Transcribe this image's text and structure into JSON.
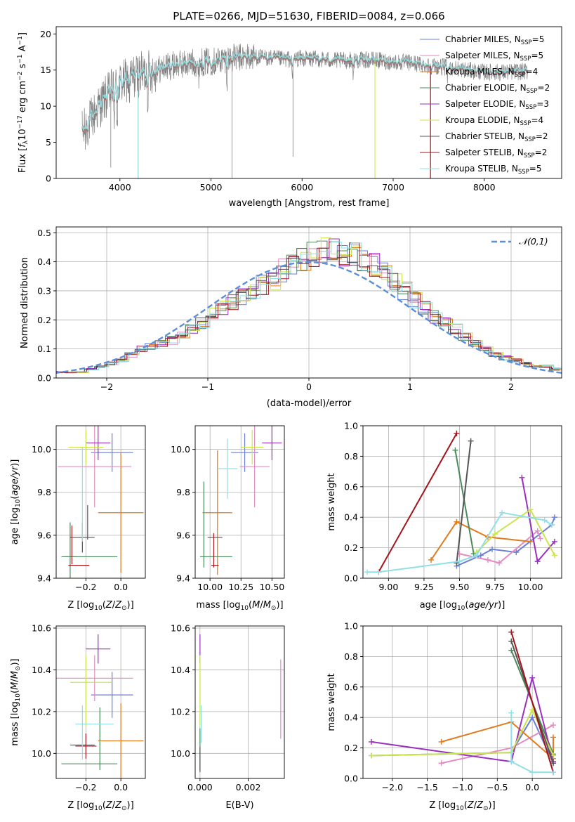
{
  "chart_data": [
    {
      "id": "spectrum",
      "type": "line",
      "title": "PLATE=0266, MJD=51630, FIBERID=0084, z=0.066",
      "xlabel": "wavelength [Angstrom, rest frame]",
      "ylabel": "Flux [f_λ10^-17 erg cm^-2 s^-1 A^-1]",
      "xlim": [
        3300,
        8850
      ],
      "ylim": [
        0,
        21
      ],
      "xticks": [
        4000,
        5000,
        6000,
        7000,
        8000
      ],
      "yticks": [
        0,
        5,
        10,
        15,
        20
      ],
      "grid": false,
      "legend_position": "top-right",
      "continuum": {
        "x": [
          3600,
          3700,
          3800,
          3900,
          4000,
          4100,
          4200,
          4300,
          4400,
          4500,
          4600,
          4800,
          5000,
          5200,
          5400,
          5600,
          5800,
          6000,
          6200,
          6400,
          6600,
          6800,
          7000,
          7200,
          7400,
          7600,
          7800,
          8000,
          8200,
          8400
        ],
        "y": [
          6.5,
          8.5,
          10.5,
          12.0,
          13.0,
          13.8,
          14.3,
          14.7,
          15.0,
          15.4,
          15.7,
          16.0,
          16.2,
          16.6,
          16.8,
          16.7,
          16.5,
          16.6,
          16.5,
          16.3,
          16.4,
          16.4,
          16.1,
          16.0,
          15.6,
          15.4,
          15.0,
          14.7,
          14.7,
          14.8
        ]
      },
      "series": [
        {
          "name": "Chabrier MILES, N_SSP=5",
          "label_main": "Chabrier MILES, N",
          "label_sub": "SSP",
          "label_end": "=5",
          "color": "#6a7fd6"
        },
        {
          "name": "Salpeter MILES, N_SSP=5",
          "label_main": "Salpeter MILES, N",
          "label_sub": "SSP",
          "label_end": "=5",
          "color": "#e38ac0"
        },
        {
          "name": "Kroupa MILES, N_SSP=4",
          "label_main": "Kroupa MILES, N",
          "label_sub": "SSP",
          "label_end": "=4",
          "color": "#e07b1f"
        },
        {
          "name": "Chabrier ELODIE, N_SSP=2",
          "label_main": "Chabrier ELODIE, N",
          "label_sub": "SSP",
          "label_end": "=2",
          "color": "#4b8a5a"
        },
        {
          "name": "Salpeter ELODIE, N_SSP=3",
          "label_main": "Salpeter ELODIE, N",
          "label_sub": "SSP",
          "label_end": "=3",
          "color": "#9a2fc0"
        },
        {
          "name": "Kroupa ELODIE, N_SSP=4",
          "label_main": "Kroupa ELODIE, N",
          "label_sub": "SSP",
          "label_end": "=4",
          "color": "#c8e64a"
        },
        {
          "name": "Chabrier STELIB, N_SSP=2",
          "label_main": "Chabrier STELIB, N",
          "label_sub": "SSP",
          "label_end": "=2",
          "color": "#555555"
        },
        {
          "name": "Salpeter STELIB, N_SSP=2",
          "label_main": "Salpeter STELIB, N",
          "label_sub": "SSP",
          "label_end": "=2",
          "color": "#a3151c"
        },
        {
          "name": "Kroupa STELIB, N_SSP=5",
          "label_main": "Kroupa STELIB, N",
          "label_sub": "SSP",
          "label_end": "=5",
          "color": "#8fe0e6"
        }
      ]
    },
    {
      "id": "residuals",
      "type": "histogram",
      "xlabel": "(data-model)/error",
      "ylabel": "Normed distribution",
      "xlim": [
        -2.5,
        2.5
      ],
      "ylim": [
        0,
        0.52
      ],
      "xticks": [
        -2,
        -1,
        0,
        1,
        2
      ],
      "yticks": [
        0.0,
        0.1,
        0.2,
        0.3,
        0.4,
        0.5
      ],
      "grid": true,
      "legend_position": "top-right",
      "reference_curve": {
        "name": "𝒩(0,1)",
        "mean": 0,
        "sigma": 1,
        "color": "#5b8fd9"
      },
      "bin_width": 0.1,
      "bin_start": -2.5,
      "base_values": [
        0.02,
        0.02,
        0.02,
        0.03,
        0.04,
        0.05,
        0.06,
        0.08,
        0.1,
        0.11,
        0.12,
        0.13,
        0.15,
        0.17,
        0.19,
        0.22,
        0.24,
        0.26,
        0.28,
        0.3,
        0.32,
        0.34,
        0.37,
        0.39,
        0.41,
        0.43,
        0.44,
        0.44,
        0.43,
        0.42,
        0.41,
        0.39,
        0.36,
        0.33,
        0.3,
        0.27,
        0.24,
        0.21,
        0.19,
        0.17,
        0.14,
        0.12,
        0.1,
        0.08,
        0.07,
        0.06,
        0.05,
        0.04,
        0.04,
        0.03
      ]
    },
    {
      "id": "age_vs_Z",
      "type": "errorbar",
      "xlabel": "Z [log10(Z/Z⊙)]",
      "ylabel": "age [log10(age/yr)]",
      "xlim": [
        -0.37,
        0.14
      ],
      "ylim": [
        9.4,
        10.11
      ],
      "xticks": [
        -0.2,
        0.0
      ],
      "yticks": [
        9.4,
        9.6,
        9.8,
        10.0
      ],
      "grid": true,
      "points": [
        {
          "color": "#6a7fd6",
          "x": -0.05,
          "xerr": 0.12,
          "y": 9.985,
          "yerr": 0.09
        },
        {
          "color": "#e38ac0",
          "x": -0.15,
          "xerr": 0.21,
          "y": 9.92,
          "yerr": 0.19
        },
        {
          "color": "#e07b1f",
          "x": 0.0,
          "xerr": 0.13,
          "y": 9.705,
          "yerr": 0.28
        },
        {
          "color": "#4b8a5a",
          "x": -0.29,
          "xerr": 0.03,
          "y": 9.5,
          "yerr": 0.16
        },
        {
          "color": "#4b8a5a",
          "x": -0.18,
          "xerr": 0.16,
          "y": 9.5,
          "yerr": 0.0
        },
        {
          "color": "#9a2fc0",
          "x": -0.13,
          "xerr": 0.07,
          "y": 10.03,
          "yerr": 0.08
        },
        {
          "color": "#c8e64a",
          "x": -0.2,
          "xerr": 0.1,
          "y": 10.01,
          "yerr": 0.08
        },
        {
          "color": "#555555",
          "x": -0.22,
          "xerr": 0.07,
          "y": 9.59,
          "yerr": 0.07
        },
        {
          "color": "#555555",
          "x": -0.19,
          "xerr": 0.0,
          "y": 9.66,
          "yerr": 0.08
        },
        {
          "color": "#a3151c",
          "x": -0.24,
          "xerr": 0.06,
          "y": 9.46,
          "yerr": 0.0
        },
        {
          "color": "#a3151c",
          "x": -0.28,
          "xerr": 0.0,
          "y": 9.555,
          "yerr": 0.09
        },
        {
          "color": "#8fe0e6",
          "x": -0.22,
          "xerr": 0.0,
          "y": 9.79,
          "yerr": 0.22
        }
      ]
    },
    {
      "id": "age_vs_mass",
      "type": "errorbar",
      "xlabel": "mass [log10(M/M⊙)]",
      "ylabel": "",
      "xlim": [
        9.88,
        10.6
      ],
      "ylim": [
        9.4,
        10.11
      ],
      "xticks": [
        10.0,
        10.25,
        10.5
      ],
      "yticks": [
        9.4,
        9.6,
        9.8,
        10.0
      ],
      "grid": true,
      "points": [
        {
          "color": "#6a7fd6",
          "x": 10.28,
          "xerr": 0.11,
          "y": 9.985,
          "yerr": 0.09
        },
        {
          "color": "#e38ac0",
          "x": 10.36,
          "xerr": 0.12,
          "y": 9.92,
          "yerr": 0.19
        },
        {
          "color": "#e07b1f",
          "x": 10.06,
          "xerr": 0.12,
          "y": 9.705,
          "yerr": 0.29
        },
        {
          "color": "#4b8a5a",
          "x": 10.05,
          "xerr": 0.13,
          "y": 9.5,
          "yerr": 0.0
        },
        {
          "color": "#4b8a5a",
          "x": 9.95,
          "xerr": 0.0,
          "y": 9.65,
          "yerr": 0.2
        },
        {
          "color": "#9a2fc0",
          "x": 10.5,
          "xerr": 0.08,
          "y": 10.03,
          "yerr": 0.08
        },
        {
          "color": "#c8e64a",
          "x": 10.34,
          "xerr": 0.09,
          "y": 10.01,
          "yerr": 0.08
        },
        {
          "color": "#555555",
          "x": 10.04,
          "xerr": 0.06,
          "y": 9.59,
          "yerr": 0.0
        },
        {
          "color": "#a3151c",
          "x": 10.04,
          "xerr": 0.03,
          "y": 9.46,
          "yerr": 0.0
        },
        {
          "color": "#a3151c",
          "x": 10.03,
          "xerr": 0.0,
          "y": 9.53,
          "yerr": 0.08
        },
        {
          "color": "#8fe0e6",
          "x": 10.14,
          "xerr": 0.08,
          "y": 9.91,
          "yerr": 0.14
        }
      ]
    },
    {
      "id": "weight_vs_age",
      "type": "line",
      "xlabel": "age [log10(age/yr)]",
      "ylabel": "mass weight",
      "xlim": [
        8.82,
        10.22
      ],
      "ylim": [
        0,
        1.0
      ],
      "xticks": [
        9.0,
        9.25,
        9.5,
        9.75,
        10.0
      ],
      "yticks": [
        0.0,
        0.2,
        0.4,
        0.6,
        0.8,
        1.0
      ],
      "grid": true,
      "series": [
        {
          "color": "#6a7fd6",
          "x": [
            9.48,
            9.65,
            9.73,
            9.9,
            10.15,
            10.17
          ],
          "y": [
            0.08,
            0.15,
            0.19,
            0.17,
            0.35,
            0.4
          ]
        },
        {
          "color": "#e38ac0",
          "x": [
            9.5,
            9.7,
            9.78,
            10.05,
            10.07
          ],
          "y": [
            0.16,
            0.12,
            0.1,
            0.31,
            0.26
          ]
        },
        {
          "color": "#e07b1f",
          "x": [
            9.3,
            9.48,
            9.7,
            10.0
          ],
          "y": [
            0.12,
            0.37,
            0.27,
            0.24
          ]
        },
        {
          "color": "#4b8a5a",
          "x": [
            9.47,
            9.6
          ],
          "y": [
            0.84,
            0.16
          ]
        },
        {
          "color": "#9a2fc0",
          "x": [
            9.94,
            10.05,
            10.17
          ],
          "y": [
            0.66,
            0.11,
            0.24
          ]
        },
        {
          "color": "#c8e64a",
          "x": [
            9.62,
            9.75,
            10.0,
            10.17
          ],
          "y": [
            0.17,
            0.29,
            0.45,
            0.15
          ]
        },
        {
          "color": "#555555",
          "x": [
            9.48,
            9.58
          ],
          "y": [
            0.1,
            0.9
          ]
        },
        {
          "color": "#a3151c",
          "x": [
            8.93,
            9.48
          ],
          "y": [
            0.04,
            0.95
          ]
        },
        {
          "color": "#8fe0e6",
          "x": [
            8.85,
            8.93,
            9.5,
            9.62,
            9.8,
            10.1,
            10.15
          ],
          "y": [
            0.04,
            0.04,
            0.11,
            0.15,
            0.43,
            0.38,
            0.35
          ]
        }
      ]
    },
    {
      "id": "mass_vs_Z",
      "type": "errorbar",
      "xlabel": "Z [log10(Z/Z⊙)]",
      "ylabel": "mass [log10(M/M⊙)]",
      "xlim": [
        -0.37,
        0.14
      ],
      "ylim": [
        9.88,
        10.61
      ],
      "xticks": [
        -0.2,
        0.0
      ],
      "yticks": [
        10.0,
        10.2,
        10.4,
        10.6
      ],
      "grid": true,
      "points": [
        {
          "color": "#6a7fd6",
          "x": -0.05,
          "xerr": 0.12,
          "y": 10.28,
          "yerr": 0.11
        },
        {
          "color": "#e38ac0",
          "x": -0.15,
          "xerr": 0.22,
          "y": 10.36,
          "yerr": 0.11
        },
        {
          "color": "#e07b1f",
          "x": 0.0,
          "xerr": 0.13,
          "y": 10.06,
          "yerr": 0.18
        },
        {
          "color": "#4b8a5a",
          "x": -0.18,
          "xerr": 0.16,
          "y": 9.95,
          "yerr": 0.0
        },
        {
          "color": "#4b8a5a",
          "x": -0.12,
          "xerr": 0.0,
          "y": 10.07,
          "yerr": 0.15
        },
        {
          "color": "#9a2fc0",
          "x": -0.13,
          "xerr": 0.07,
          "y": 10.5,
          "yerr": 0.07
        },
        {
          "color": "#c8e64a",
          "x": -0.17,
          "xerr": 0.12,
          "y": 10.34,
          "yerr": 0.0
        },
        {
          "color": "#c8e64a",
          "x": -0.2,
          "xerr": 0.0,
          "y": 10.3,
          "yerr": 0.17
        },
        {
          "color": "#555555",
          "x": -0.22,
          "xerr": 0.07,
          "y": 10.04,
          "yerr": 0.0
        },
        {
          "color": "#a3151c",
          "x": -0.2,
          "xerr": 0.06,
          "y": 10.035,
          "yerr": 0.06
        },
        {
          "color": "#8fe0e6",
          "x": -0.15,
          "xerr": 0.11,
          "y": 10.14,
          "yerr": 0.0
        },
        {
          "color": "#8fe0e6",
          "x": -0.22,
          "xerr": 0.0,
          "y": 10.1,
          "yerr": 0.13
        }
      ]
    },
    {
      "id": "mass_vs_EBV",
      "type": "errorbar",
      "xlabel": "E(B-V)",
      "ylabel": "",
      "xlim": [
        -0.0002,
        0.0035
      ],
      "ylim": [
        9.88,
        10.61
      ],
      "xticks": [
        0.0,
        0.002
      ],
      "yticks": [
        10.0,
        10.2,
        10.4,
        10.6
      ],
      "grid": true,
      "points": [
        {
          "color": "#e38ac0",
          "x": 0.00335,
          "xerr": 0.0,
          "y": 10.26,
          "yerr": 0.19
        },
        {
          "color": "#9a2fc0",
          "x": 0.0,
          "xerr": 0.0,
          "y": 10.5,
          "yerr": 0.07
        },
        {
          "color": "#c8e64a",
          "x": 0.0,
          "xerr": 0.0,
          "y": 10.3,
          "yerr": 0.17
        },
        {
          "color": "#8fe0e6",
          "x": 5e-05,
          "xerr": 0.0,
          "y": 10.14,
          "yerr": 0.09
        },
        {
          "color": "#4b8a5a",
          "x": 0.0,
          "xerr": 0.0,
          "y": 10.02,
          "yerr": 0.1
        },
        {
          "color": "#555555",
          "x": 0.0,
          "xerr": 0.0,
          "y": 9.97,
          "yerr": 0.06
        }
      ]
    },
    {
      "id": "weight_vs_Z",
      "type": "line",
      "xlabel": "Z [log10(Z/Z⊙)]",
      "ylabel": "mass weight",
      "xlim": [
        -2.42,
        0.42
      ],
      "ylim": [
        0,
        1.0
      ],
      "xticks": [
        -2.0,
        -1.5,
        -1.0,
        -0.5,
        0.0
      ],
      "yticks": [
        0.0,
        0.2,
        0.4,
        0.6,
        0.8,
        1.0
      ],
      "grid": true,
      "series": [
        {
          "color": "#6a7fd6",
          "x": [
            -2.3,
            -0.3,
            0.0,
            0.3
          ],
          "y": [
            0.15,
            0.17,
            0.4,
            0.1
          ]
        },
        {
          "color": "#e38ac0",
          "x": [
            -1.3,
            -0.3,
            0.3
          ],
          "y": [
            0.1,
            0.2,
            0.35
          ]
        },
        {
          "color": "#e07b1f",
          "x": [
            -1.3,
            -0.3,
            0.3,
            0.3
          ],
          "y": [
            0.24,
            0.37,
            0.13,
            0.27
          ]
        },
        {
          "color": "#4b8a5a",
          "x": [
            -0.3,
            0.3
          ],
          "y": [
            0.84,
            0.16
          ]
        },
        {
          "color": "#9a2fc0",
          "x": [
            -2.3,
            -0.3,
            0.0,
            0.3
          ],
          "y": [
            0.24,
            0.11,
            0.66,
            0.11
          ]
        },
        {
          "color": "#c8e64a",
          "x": [
            -2.3,
            -0.3,
            0.0,
            0.3
          ],
          "y": [
            0.15,
            0.17,
            0.45,
            0.15
          ]
        },
        {
          "color": "#555555",
          "x": [
            -0.3,
            0.3
          ],
          "y": [
            0.9,
            0.1
          ]
        },
        {
          "color": "#a3151c",
          "x": [
            -0.3,
            0.3
          ],
          "y": [
            0.96,
            0.04
          ]
        },
        {
          "color": "#8fe0e6",
          "x": [
            -0.3,
            -0.3,
            0.0,
            0.3
          ],
          "y": [
            0.43,
            0.11,
            0.04,
            0.04
          ]
        }
      ]
    }
  ]
}
